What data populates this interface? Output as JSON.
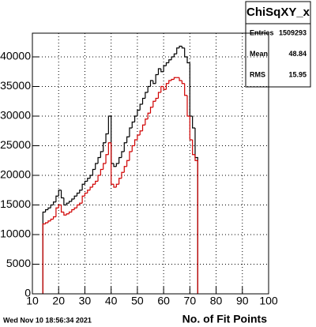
{
  "chart_data": {
    "type": "histogram",
    "date": "Wed Nov 10 18:56:34 2021",
    "x_label": "No. of Fit Points",
    "stats": {
      "title": "ChiSqXY_x",
      "labels": [
        "Entries",
        "Mean",
        "RMS"
      ],
      "values": [
        1509293,
        48.84,
        15.95
      ]
    },
    "bins": [
      14,
      15,
      16,
      17,
      18,
      19,
      20,
      21,
      22,
      23,
      24,
      25,
      26,
      27,
      28,
      29,
      30,
      31,
      32,
      33,
      34,
      35,
      36,
      37,
      38,
      39,
      40,
      41,
      42,
      43,
      44,
      45,
      46,
      47,
      48,
      49,
      50,
      51,
      52,
      53,
      54,
      55,
      56,
      57,
      58,
      59,
      60,
      61,
      62,
      63,
      64,
      65,
      66,
      67,
      68,
      69,
      70,
      71,
      72,
      73
    ],
    "series": [
      {
        "name": "black",
        "color": "#000000",
        "values": [
          13800,
          14200,
          14500,
          15000,
          15500,
          16500,
          17500,
          16200,
          15000,
          15300,
          15600,
          16000,
          16500,
          17000,
          17500,
          18500,
          19000,
          19500,
          20000,
          21000,
          22000,
          23000,
          24000,
          25500,
          27000,
          30000,
          22000,
          21500,
          22000,
          23000,
          24000,
          25500,
          26500,
          28000,
          29000,
          30000,
          31000,
          32000,
          33000,
          34000,
          35000,
          36000,
          35500,
          37000,
          38000,
          37500,
          38500,
          39000,
          39500,
          40000,
          40500,
          41500,
          41800,
          41500,
          40000,
          39000,
          30000,
          28000,
          23000
        ]
      },
      {
        "name": "red",
        "color": "#d00000",
        "values": [
          11800,
          12000,
          12300,
          12600,
          13000,
          14500,
          15000,
          13800,
          13300,
          13500,
          13800,
          14200,
          14500,
          15000,
          15300,
          16500,
          17000,
          17500,
          18000,
          18500,
          19000,
          20000,
          21000,
          22000,
          23500,
          25500,
          18500,
          18000,
          18500,
          19500,
          20500,
          21500,
          22500,
          24000,
          25000,
          26000,
          26800,
          27500,
          28500,
          29500,
          30500,
          31500,
          32500,
          33000,
          34000,
          35000,
          34500,
          35500,
          36000,
          36200,
          36500,
          36500,
          36000,
          35500,
          33500,
          30000,
          26000,
          23500,
          22500
        ]
      }
    ],
    "xlim": [
      10,
      100
    ],
    "ylim": [
      0,
      44000
    ],
    "xticks": [
      10,
      20,
      30,
      40,
      50,
      60,
      70,
      80,
      90,
      100
    ],
    "yticks": [
      0,
      5000,
      10000,
      15000,
      20000,
      25000,
      30000,
      35000,
      40000
    ],
    "grid": true
  }
}
